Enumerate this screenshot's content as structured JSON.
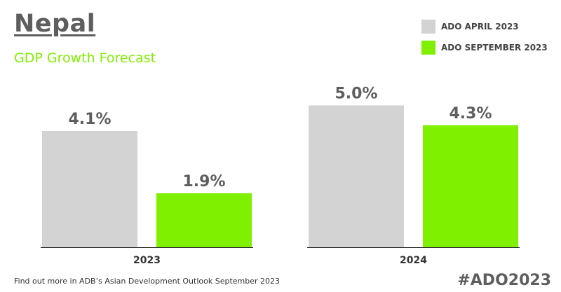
{
  "title": "Nepal",
  "subtitle": "GDP Growth Forecast",
  "footer": "Find out more in ADB’s Asian Development Outlook September 2023",
  "hashtag": "#ADO2023",
  "colors": {
    "april": "#d3d3d3",
    "september": "#7ff000",
    "text": "#5e5e5e",
    "axis": "#333333"
  },
  "chart_data": {
    "type": "bar",
    "title": "Nepal",
    "subtitle": "GDP Growth Forecast",
    "categories": [
      "2023",
      "2024"
    ],
    "series": [
      {
        "name": "ADO APRIL 2023",
        "values": [
          4.1,
          5.0
        ],
        "labels": [
          "4.1%",
          "5.0%"
        ]
      },
      {
        "name": "ADO SEPTEMBER 2023",
        "values": [
          1.9,
          4.3
        ],
        "labels": [
          "1.9%",
          "4.3%"
        ]
      }
    ],
    "unit": "%",
    "ylim": [
      0,
      6
    ],
    "grid": false,
    "legend": "top-right"
  }
}
